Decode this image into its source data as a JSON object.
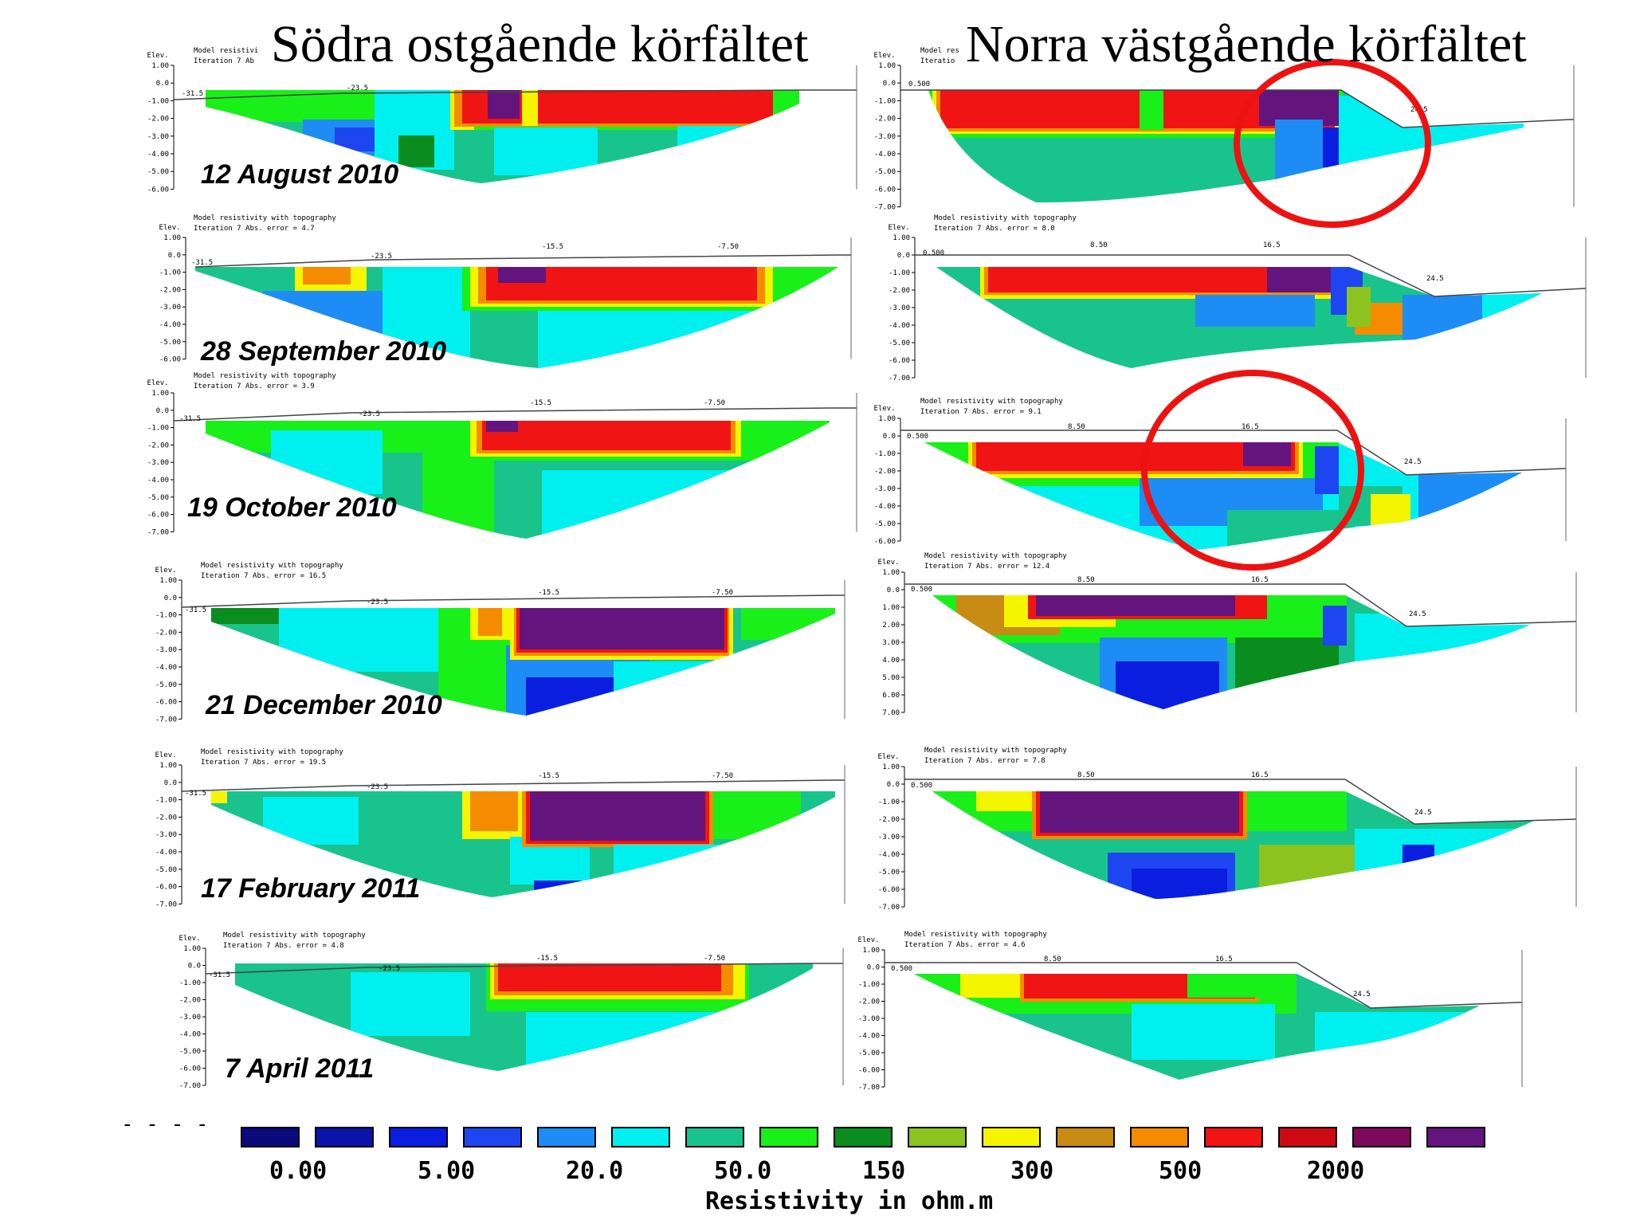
{
  "titles": {
    "left": "Södra ostgående körfältet",
    "right": "Norra västgående körfältet"
  },
  "chart_data": {
    "type": "heatmap",
    "title": "",
    "colorbar": {
      "title": "Resistivity in ohm.m",
      "tick_labels": [
        "0.00",
        "5.00",
        "20.0",
        "50.0",
        "150",
        "300",
        "500",
        "2000"
      ],
      "colors": [
        "#0a0a7a",
        "#0a14a8",
        "#0a1ee0",
        "#1e46f0",
        "#1e8cf5",
        "#00f0f0",
        "#19c38c",
        "#19f019",
        "#0a8c1e",
        "#8cc31e",
        "#f5f500",
        "#c88c14",
        "#f58c00",
        "#f01414",
        "#cd0a14",
        "#7d0a5a",
        "#64147d"
      ]
    },
    "panel_header": {
      "line1": "Model resistivity with topography",
      "iteration": "Iteration 7",
      "elev_label": "Elev.",
      "elev_ticks_6": [
        "1.00",
        "0.0",
        "-1.00",
        "-2.00",
        "-3.00",
        "-4.00",
        "-5.00",
        "-6.00"
      ],
      "elev_ticks_7": [
        "1.00",
        "0.0",
        "-1.00",
        "-2.00",
        "-3.00",
        "-4.00",
        "-5.00",
        "-6.00",
        "-7.00"
      ],
      "elev_ticks_7_unsigned": [
        "1.00",
        "0.0",
        "1.00",
        "2.00",
        "3.00",
        "4.00",
        "5.00",
        "6.00",
        "7.00"
      ]
    },
    "left_panels": [
      {
        "date": "12 August 2010",
        "abs_error": "",
        "x_labels": [
          "-31.5",
          "-23.5"
        ]
      },
      {
        "date": "28 September 2010",
        "abs_error": "Abs. error = 4.7",
        "x_labels": [
          "-31.5",
          "-23.5",
          "-15.5",
          "-7.50"
        ]
      },
      {
        "date": "19 October 2010",
        "abs_error": "Abs. error = 3.9",
        "x_labels": [
          "-31.5",
          "-23.5",
          "-15.5",
          "-7.50"
        ]
      },
      {
        "date": "21 December 2010",
        "abs_error": "Abs. error = 16.5",
        "x_labels": [
          "-31.5",
          "-23.5",
          "-15.5",
          "-7.50"
        ]
      },
      {
        "date": "17 February 2011",
        "abs_error": "Abs. error = 19.5",
        "x_labels": [
          "-31.5",
          "-23.5",
          "-15.5",
          "-7.50"
        ]
      },
      {
        "date": "7 April 2011",
        "abs_error": "Abs. error = 4.8",
        "x_labels": [
          "-31.5",
          "-23.5",
          "-15.5",
          "-7.50"
        ]
      }
    ],
    "right_panels": [
      {
        "abs_error": "",
        "x_labels": [
          "0.500",
          "24.5"
        ]
      },
      {
        "abs_error": "Abs. error = 8.0",
        "x_labels": [
          "0.500",
          "8.50",
          "16.5",
          "24.5"
        ]
      },
      {
        "abs_error": "Abs. error = 9.1",
        "x_labels": [
          "0.500",
          "8.50",
          "16.5",
          "24.5"
        ]
      },
      {
        "abs_error": "Abs. error = 12.4",
        "x_labels": [
          "0.500",
          "8.50",
          "16.5",
          "24.5"
        ]
      },
      {
        "abs_error": "Abs. error = 7.8",
        "x_labels": [
          "0.500",
          "8.50",
          "16.5",
          "24.5"
        ]
      },
      {
        "abs_error": "Abs. error = 4.6",
        "x_labels": [
          "0.500",
          "8.50",
          "16.5",
          "24.5"
        ]
      }
    ],
    "annotations": [
      "red circle around eastern part of profile, 12 August 2010",
      "red circle around eastern part of profile, 19 October 2010"
    ]
  }
}
